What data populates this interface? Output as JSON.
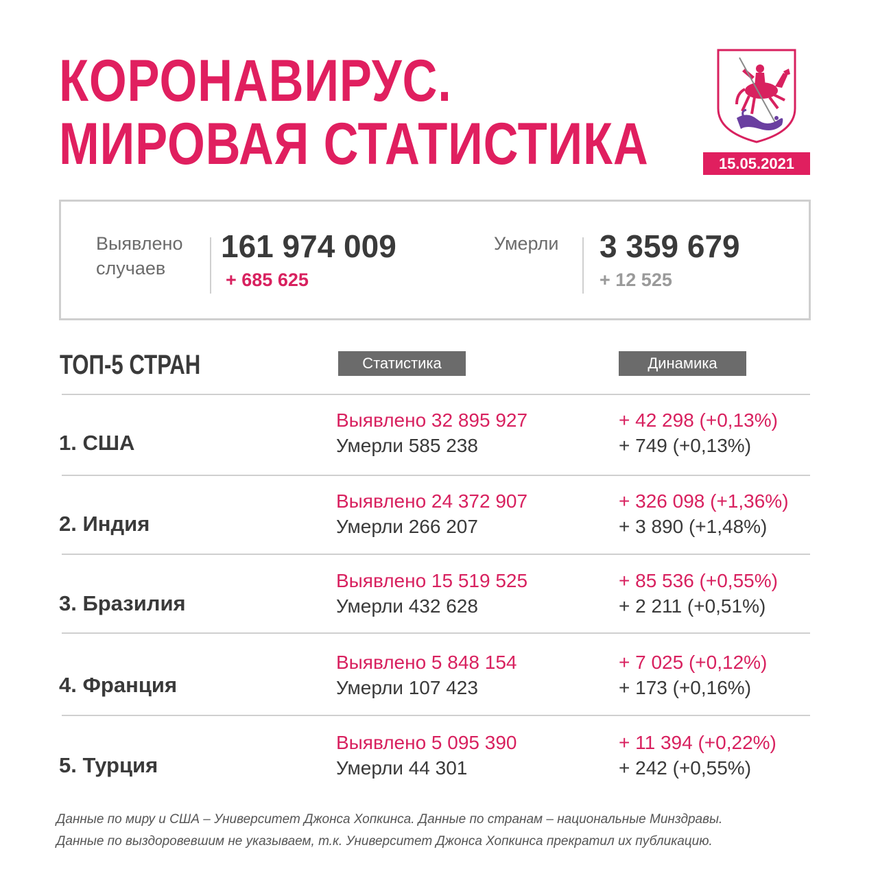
{
  "header": {
    "title_line1": "КОРОНАВИРУС.",
    "title_line2": "МИРОВАЯ СТАТИСТИКА",
    "date": "15.05.2021"
  },
  "summary": {
    "cases_label_line1": "Выявлено",
    "cases_label_line2": "случаев",
    "cases_value": "161 974 009",
    "cases_delta": "+ 685 625",
    "deaths_label": "Умерли",
    "deaths_value": "3 359 679",
    "deaths_delta": "+ 12 525"
  },
  "top5": {
    "title": "ТОП-5 СТРАН",
    "col_stats": "Статистика",
    "col_dynamics": "Динамика",
    "rows": [
      {
        "country": "1. США",
        "cases": "Выявлено 32 895 927",
        "deaths": "Умерли 585 238",
        "cases_delta": "+ 42 298 (+0,13%)",
        "deaths_delta": "+ 749 (+0,13%)"
      },
      {
        "country": "2. Индия",
        "cases": "Выявлено 24 372 907",
        "deaths": "Умерли 266 207",
        "cases_delta": "+ 326 098 (+1,36%)",
        "deaths_delta": "+ 3 890 (+1,48%)"
      },
      {
        "country": "3. Бразилия",
        "cases": "Выявлено 15 519 525",
        "deaths": "Умерли 432 628",
        "cases_delta": "+ 85 536 (+0,55%)",
        "deaths_delta": "+ 2 211 (+0,51%)"
      },
      {
        "country": "4. Франция",
        "cases": "Выявлено 5 848 154",
        "deaths": "Умерли 107 423",
        "cases_delta": "+ 7 025 (+0,12%)",
        "deaths_delta": "+ 173 (+0,16%)"
      },
      {
        "country": "5. Турция",
        "cases": "Выявлено 5 095 390",
        "deaths": "Умерли 44 301",
        "cases_delta": "+ 11 394 (+0,22%)",
        "deaths_delta": "+ 242 (+0,55%)"
      }
    ]
  },
  "footnotes": {
    "line1": "Данные по миру и США – Университет Джонса Хопкинса. Данные по странам – национальные Минздравы.",
    "line2": "Данные по выздоровевшим не указываем, т.к. Университет Джонса Хопкинса прекратил их публикацию."
  },
  "colors": {
    "accent": "#e01f5f",
    "text_dark": "#3a3a3a",
    "text_gray": "#6b6b6b",
    "chip_gray": "#6b6b6b",
    "border": "#cfcfcf"
  },
  "icons": {
    "emblem": "moscow-coat-of-arms-icon"
  }
}
